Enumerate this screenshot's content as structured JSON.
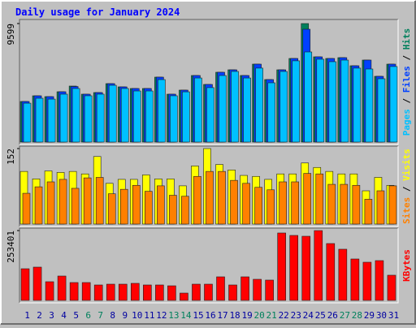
{
  "chart_data": [
    {
      "type": "bar",
      "title": "Daily usage for January 2024",
      "ylim": [
        0,
        9599
      ],
      "yticks": [
        9599
      ],
      "legend_separator": " / ",
      "series": [
        {
          "name": "Hits",
          "color": "#00805c",
          "values": [
            3288,
            3748,
            3682,
            4077,
            4537,
            3879,
            4011,
            4734,
            4471,
            4340,
            4340,
            5260,
            3879,
            4208,
            5392,
            4668,
            5655,
            5852,
            5392,
            6312,
            5063,
            5852,
            6772,
            9599,
            6904,
            6772,
            6838,
            6181,
            6641,
            5326,
            6312
          ]
        },
        {
          "name": "Files",
          "color": "#0040ff",
          "values": [
            3288,
            3748,
            3682,
            4077,
            4500,
            3879,
            4011,
            4734,
            4471,
            4340,
            4340,
            5260,
            3879,
            4208,
            5392,
            4668,
            5655,
            5852,
            5392,
            6312,
            5063,
            5852,
            6772,
            9139,
            6904,
            6772,
            6838,
            6181,
            6641,
            5326,
            6312
          ]
        },
        {
          "name": "Pages",
          "color": "#00c0ff",
          "values": [
            3150,
            3550,
            3480,
            3880,
            4340,
            3750,
            3880,
            4600,
            4340,
            4140,
            4140,
            5060,
            3750,
            4070,
            5190,
            4410,
            5390,
            5720,
            5190,
            5990,
            4800,
            5720,
            6580,
            7298,
            6710,
            6510,
            6640,
            5990,
            5918,
            5130,
            6120
          ]
        }
      ]
    },
    {
      "type": "bar",
      "ylim": [
        0,
        152
      ],
      "yticks": [
        152
      ],
      "legend_separator": " / ",
      "series": [
        {
          "name": "Visits",
          "color": "#ffff00",
          "values": [
            106,
            91,
            107,
            104,
            106,
            101,
            136,
            82,
            90,
            90,
            99,
            91,
            91,
            77,
            117,
            152,
            120,
            109,
            98,
            96,
            90,
            101,
            101,
            123,
            114,
            106,
            101,
            101,
            67,
            94,
            78
          ]
        },
        {
          "name": "Sites",
          "color": "#ff8000",
          "values": [
            62,
            75,
            85,
            90,
            72,
            93,
            94,
            61,
            70,
            78,
            66,
            77,
            58,
            56,
            96,
            106,
            106,
            88,
            82,
            74,
            69,
            85,
            85,
            102,
            101,
            80,
            80,
            78,
            50,
            67,
            77
          ]
        }
      ]
    },
    {
      "type": "bar",
      "ylim": [
        0,
        253401
      ],
      "yticks": [
        253401
      ],
      "categories": [
        "1",
        "2",
        "3",
        "4",
        "5",
        "6",
        "7",
        "8",
        "9",
        "10",
        "11",
        "12",
        "13",
        "14",
        "15",
        "16",
        "17",
        "18",
        "19",
        "20",
        "21",
        "22",
        "23",
        "24",
        "25",
        "26",
        "27",
        "28",
        "29",
        "30",
        "31"
      ],
      "category_colors": [
        "#0000a0",
        "#0000a0",
        "#0000a0",
        "#0000a0",
        "#0000a0",
        "#00805c",
        "#00805c",
        "#0000a0",
        "#0000a0",
        "#0000a0",
        "#0000a0",
        "#0000a0",
        "#00805c",
        "#00805c",
        "#0000a0",
        "#0000a0",
        "#0000a0",
        "#0000a0",
        "#0000a0",
        "#00805c",
        "#00805c",
        "#0000a0",
        "#0000a0",
        "#0000a0",
        "#0000a0",
        "#0000a0",
        "#00805c",
        "#00805c",
        "#0000a0",
        "#0000a0",
        "#0000a0"
      ],
      "series": [
        {
          "name": "KBytes",
          "color": "#ff0000",
          "values": [
            114900,
            120800,
            67800,
            88400,
            64800,
            64800,
            56000,
            58900,
            58900,
            61900,
            56000,
            56000,
            53000,
            26500,
            58900,
            58900,
            85500,
            56000,
            85500,
            76600,
            73700,
            244600,
            235800,
            232800,
            253401,
            206300,
            185700,
            150300,
            138500,
            144400,
            91400
          ]
        }
      ]
    }
  ]
}
